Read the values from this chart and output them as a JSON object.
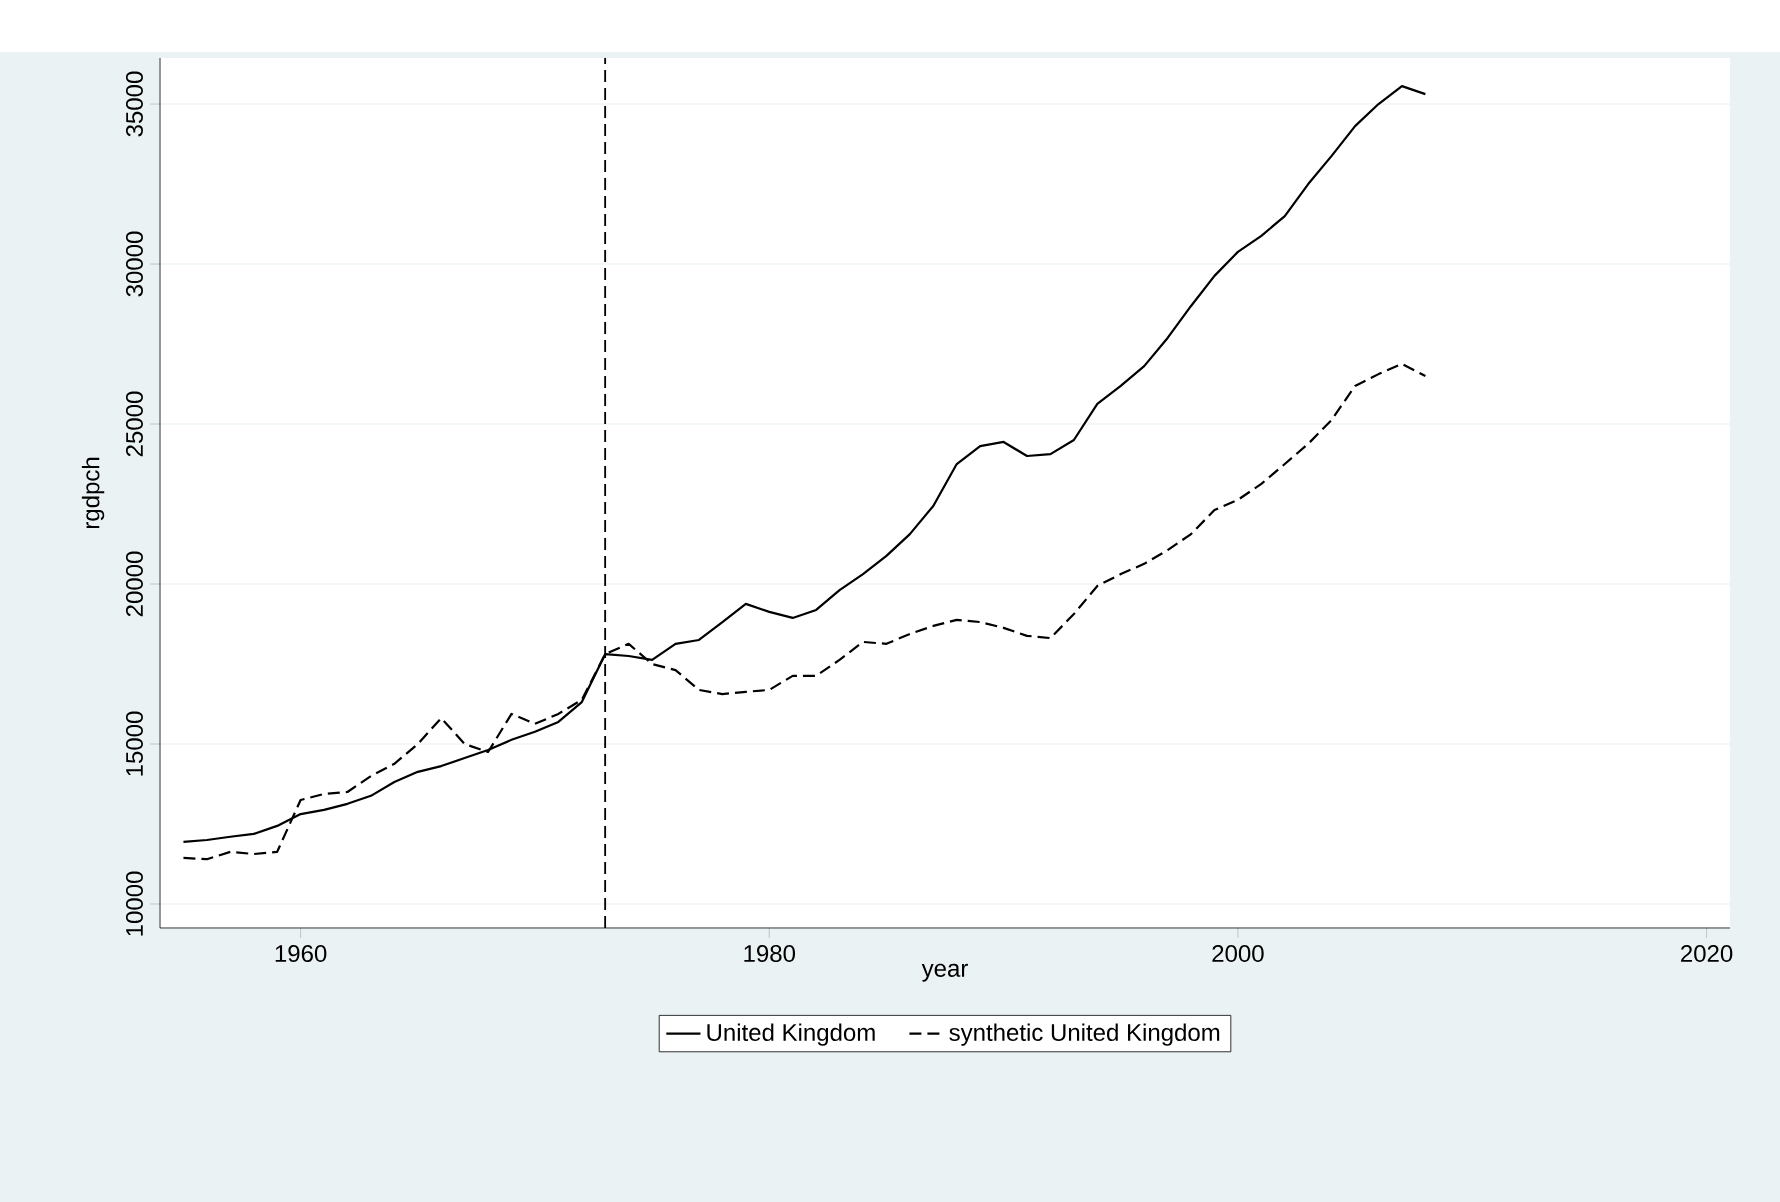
{
  "chart_data": {
    "type": "line",
    "xlabel": "year",
    "ylabel": "rgdpch",
    "x": [
      1955,
      1956,
      1957,
      1958,
      1959,
      1960,
      1961,
      1962,
      1963,
      1964,
      1965,
      1966,
      1967,
      1968,
      1969,
      1970,
      1971,
      1972,
      1973,
      1974,
      1975,
      1976,
      1977,
      1978,
      1979,
      1980,
      1981,
      1982,
      1983,
      1984,
      1985,
      1986,
      1987,
      1988,
      1989,
      1990,
      1991,
      1992,
      1993,
      1994,
      1995,
      1996,
      1997,
      1998,
      1999,
      2000,
      2001,
      2002,
      2003,
      2004,
      2005,
      2006,
      2007,
      2008
    ],
    "series": [
      {
        "name": "United Kingdom",
        "color": "#000000",
        "line_style": "solid",
        "values": [
          11940,
          12000,
          12100,
          12190,
          12440,
          12810,
          12940,
          13130,
          13380,
          13810,
          14130,
          14310,
          14560,
          14810,
          15130,
          15380,
          15690,
          16310,
          17810,
          17750,
          17630,
          18130,
          18250,
          18810,
          19380,
          19130,
          18940,
          19190,
          19810,
          20310,
          20880,
          21560,
          22440,
          23750,
          24310,
          24440,
          24000,
          24060,
          24500,
          25630,
          26190,
          26810,
          27690,
          28690,
          29630,
          30380,
          30880,
          31500,
          32500,
          33380,
          34310,
          35000,
          35560,
          35310
        ]
      },
      {
        "name": "synthetic United Kingdom",
        "color": "#000000",
        "line_style": "dashed",
        "values": [
          11440,
          11400,
          11630,
          11560,
          11630,
          13250,
          13440,
          13500,
          14000,
          14380,
          15000,
          15810,
          15000,
          14750,
          15940,
          15630,
          15940,
          16380,
          17810,
          18130,
          17500,
          17310,
          16690,
          16560,
          16630,
          16690,
          17130,
          17130,
          17630,
          18190,
          18130,
          18440,
          18690,
          18880,
          18810,
          18630,
          18380,
          18310,
          19060,
          19940,
          20310,
          20630,
          21060,
          21560,
          22310,
          22630,
          23130,
          23750,
          24380,
          25130,
          26190,
          26560,
          26880,
          26500
        ]
      }
    ],
    "xlim": [
      1954,
      2021
    ],
    "xticks": [
      1960,
      1980,
      2000,
      2020
    ],
    "ylim": [
      9250,
      36440
    ],
    "yticks": [
      10000,
      15000,
      20000,
      25000,
      30000,
      35000
    ],
    "grid": "y",
    "legend": "bottom",
    "marker": "none",
    "ref_lines": [
      {
        "axis": "x",
        "value": 1973,
        "line_style": "dashed",
        "color": "#000000"
      }
    ]
  }
}
